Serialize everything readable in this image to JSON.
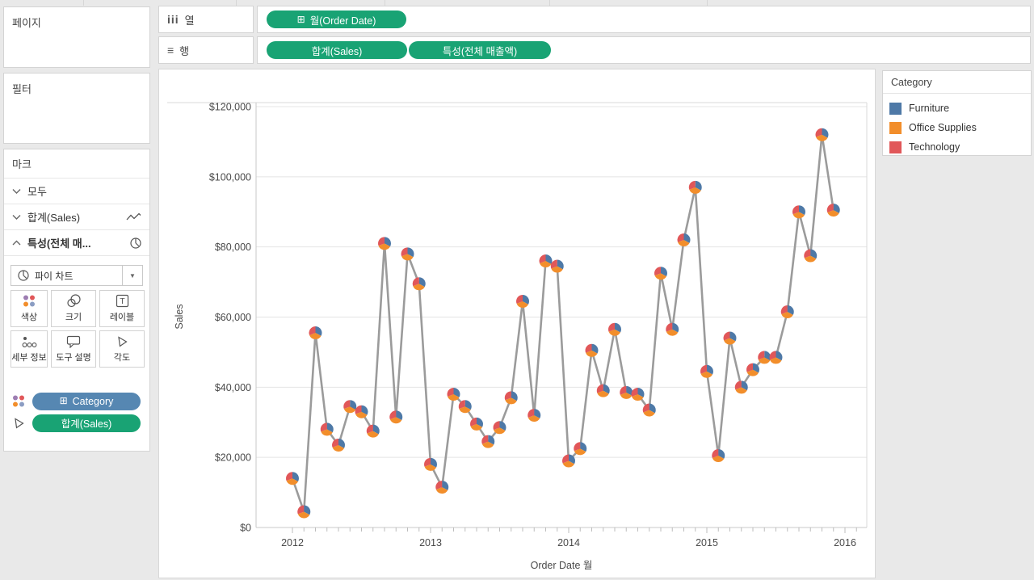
{
  "shelves": {
    "pages_label": "페이지",
    "filters_label": "필터",
    "columns": {
      "label": "열",
      "pills": [
        {
          "text": "월(Order Date)",
          "expand": true
        }
      ]
    },
    "rows": {
      "label": "행",
      "pills": [
        {
          "text": "합계(Sales)",
          "expand": false
        },
        {
          "text": "특성(전체 매출액)",
          "expand": false
        }
      ]
    },
    "pill_green": "#19A374",
    "pill_blue": "#5687B2"
  },
  "marks_panel": {
    "header_label": "마크",
    "sections": [
      {
        "label": "모두",
        "chevron": "down",
        "icon": "",
        "bold": false
      },
      {
        "label": "합계(Sales)",
        "chevron": "down",
        "icon": "line-chart-icon",
        "bold": false
      },
      {
        "label": "특성(전체 매...",
        "chevron": "up",
        "icon": "pie-chart-icon",
        "bold": true
      }
    ],
    "mark_type_label": "파이 차트",
    "buttons": [
      {
        "label": "색상",
        "icon": "color-icon"
      },
      {
        "label": "크기",
        "icon": "size-icon"
      },
      {
        "label": "레이블",
        "icon": "label-icon"
      },
      {
        "label": "세부 정보",
        "icon": "detail-icon"
      },
      {
        "label": "도구 설명",
        "icon": "tooltip-icon"
      },
      {
        "label": "각도",
        "icon": "angle-icon"
      }
    ],
    "encodings": [
      {
        "pill": "Category",
        "color": "#5687B2",
        "expand": true,
        "role_icon": "color-dots-icon"
      },
      {
        "pill": "합계(Sales)",
        "color": "#19A374",
        "expand": false,
        "role_icon": "angle-icon"
      }
    ]
  },
  "legend": {
    "title": "Category",
    "items": [
      {
        "label": "Furniture",
        "color": "#4E79A7"
      },
      {
        "label": "Office Supplies",
        "color": "#F28E2B"
      },
      {
        "label": "Technology",
        "color": "#E15759"
      }
    ]
  },
  "chart_data": {
    "type": "line",
    "marker": "pie",
    "xlabel": "Order Date 월",
    "ylabel": "Sales",
    "x_tick_labels": [
      "2012",
      "2013",
      "2014",
      "2015",
      "2016"
    ],
    "y_tick_labels": [
      "$0",
      "$20,000",
      "$40,000",
      "$60,000",
      "$80,000",
      "$100,000",
      "$120,000"
    ],
    "ylim": [
      0,
      124000
    ],
    "grid": true,
    "line_color": "#9B9B9B",
    "x": [
      "2012-01",
      "2012-02",
      "2012-03",
      "2012-04",
      "2012-05",
      "2012-06",
      "2012-07",
      "2012-08",
      "2012-09",
      "2012-10",
      "2012-11",
      "2012-12",
      "2013-01",
      "2013-02",
      "2013-03",
      "2013-04",
      "2013-05",
      "2013-06",
      "2013-07",
      "2013-08",
      "2013-09",
      "2013-10",
      "2013-11",
      "2013-12",
      "2014-01",
      "2014-02",
      "2014-03",
      "2014-04",
      "2014-05",
      "2014-06",
      "2014-07",
      "2014-08",
      "2014-09",
      "2014-10",
      "2014-11",
      "2014-12",
      "2015-01",
      "2015-02",
      "2015-03",
      "2015-04",
      "2015-05",
      "2015-06",
      "2015-07",
      "2015-08",
      "2015-09",
      "2015-10",
      "2015-11",
      "2015-12"
    ],
    "values": [
      14000,
      4500,
      55500,
      28000,
      23500,
      34500,
      33000,
      27500,
      81000,
      31500,
      78000,
      69500,
      18000,
      11500,
      38000,
      34500,
      29500,
      24500,
      28500,
      37000,
      64500,
      32000,
      76000,
      74500,
      19000,
      22500,
      50500,
      39000,
      56500,
      38500,
      38000,
      33500,
      72500,
      56500,
      82000,
      97000,
      44500,
      20500,
      54000,
      40000,
      45000,
      48500,
      48500,
      61500,
      90000,
      77500,
      112000,
      90500
    ],
    "slices": [
      {
        "name": "Furniture",
        "color": "#4E79A7",
        "fraction": 0.33
      },
      {
        "name": "Office Supplies",
        "color": "#F28E2B",
        "fraction": 0.36
      },
      {
        "name": "Technology",
        "color": "#E15759",
        "fraction": 0.31
      }
    ]
  }
}
